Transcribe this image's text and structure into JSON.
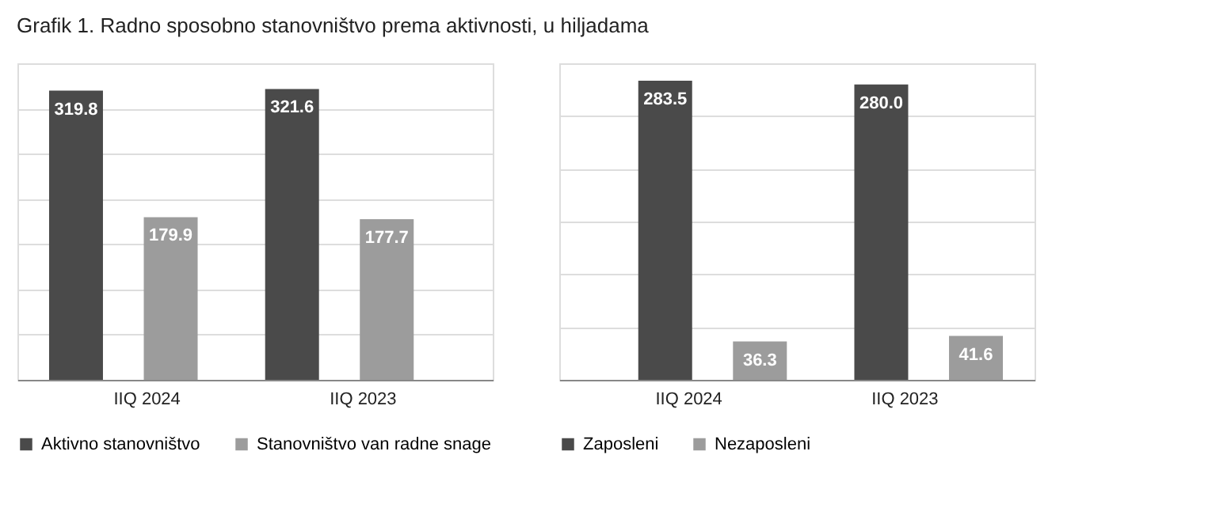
{
  "chart_data": [
    {
      "type": "bar",
      "title": "Grafik 1. Radno sposobno stanovništvo prema aktivnosti, u hiljadama",
      "categories": [
        "IIQ 2024",
        "IIQ 2023"
      ],
      "series": [
        {
          "name": "Aktivno stanovništvo",
          "color": "#4a4a4a",
          "values": [
            319.8,
            321.6
          ]
        },
        {
          "name": "Stanovništvo van radne snage",
          "color": "#9c9c9c",
          "values": [
            179.9,
            177.7
          ]
        }
      ],
      "data_labels": true,
      "grid": "y",
      "legend": "bottom",
      "tick_labels": "x"
    },
    {
      "type": "bar",
      "categories": [
        "IIQ 2024",
        "IIQ 2023"
      ],
      "series": [
        {
          "name": "Zaposleni",
          "color": "#4a4a4a",
          "values": [
            283.5,
            280.0
          ],
          "value_labels": [
            "283.5",
            "280.0"
          ]
        },
        {
          "name": "Nezaposleni",
          "color": "#9c9c9c",
          "values": [
            36.3,
            41.6
          ]
        }
      ],
      "data_labels": true,
      "grid": "y",
      "legend": "bottom",
      "tick_labels": "x"
    }
  ]
}
